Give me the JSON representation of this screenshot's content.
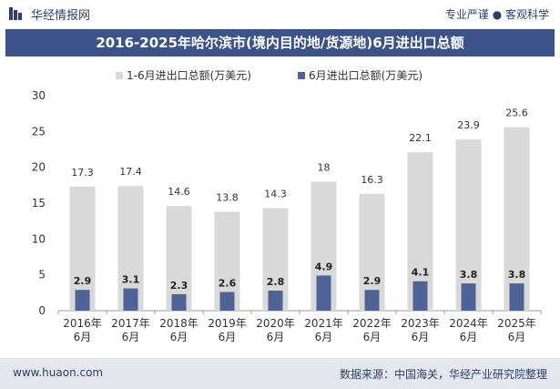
{
  "header": {
    "brand": "华经情报网",
    "tagline": "专业严谨 ● 客观科学"
  },
  "footer": {
    "url": "www.huaon.com",
    "source": "数据来源：中国海关，华经产业研究院整理"
  },
  "colors": {
    "series_total": "#d9d9d9",
    "series_june": "#4e6496",
    "title_bg": "#3b5388"
  },
  "chart_data": {
    "type": "bar",
    "title": "2016-2025年哈尔滨市(境内目的地/货源地)6月进出口总额",
    "xlabel": "",
    "ylabel": "",
    "ylim": [
      0,
      30
    ],
    "yticks": [
      0,
      5,
      10,
      15,
      20,
      25,
      30
    ],
    "grid": false,
    "legend": "top-center",
    "categories": [
      "2016年\n6月",
      "2017年\n6月",
      "2018年\n6月",
      "2019年\n6月",
      "2020年\n6月",
      "2021年\n6月",
      "2022年\n6月",
      "2023年\n6月",
      "2024年\n6月",
      "2025年\n6月"
    ],
    "series": [
      {
        "name": "1-6月进出口总额(万美元)",
        "values": [
          17.3,
          17.4,
          14.6,
          13.8,
          14.3,
          18,
          16.3,
          22.1,
          23.9,
          25.6
        ],
        "labels": [
          "17.3",
          "17.4",
          "14.6",
          "13.8",
          "14.3",
          "18",
          "16.3",
          "22.1",
          "23.9",
          "25.6"
        ]
      },
      {
        "name": "6月进出口总额(万美元)",
        "values": [
          2.9,
          3.1,
          2.3,
          2.6,
          2.8,
          4.9,
          2.9,
          4.1,
          3.8,
          3.8
        ],
        "labels": [
          "2.9",
          "3.1",
          "2.3",
          "2.6",
          "2.8",
          "4.9",
          "2.9",
          "4.1",
          "3.8",
          "3.8"
        ]
      }
    ]
  }
}
